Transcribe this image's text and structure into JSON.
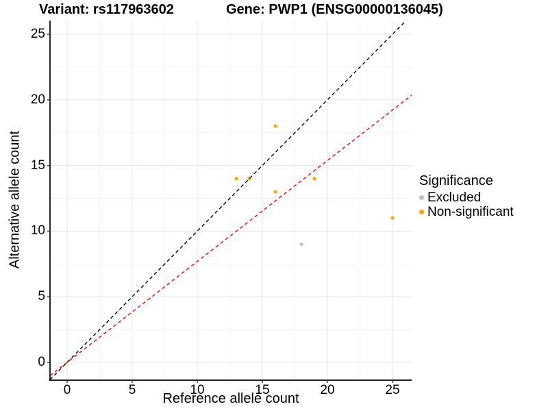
{
  "titles": {
    "variant": "Variant: rs117963602",
    "gene": "Gene: PWP1 (ENSG00000136045)"
  },
  "chart_data": {
    "type": "scatter",
    "xlabel": "Reference allele count",
    "ylabel": "Alternative allele count",
    "x_ticks": [
      0,
      5,
      10,
      15,
      20,
      25
    ],
    "y_ticks": [
      0,
      5,
      10,
      15,
      20,
      25
    ],
    "x_minor_ticks": [
      2.5,
      7.5,
      12.5,
      17.5,
      22.5
    ],
    "y_minor_ticks": [
      2.5,
      7.5,
      12.5,
      17.5,
      22.5
    ],
    "xlim": [
      -1.3,
      26.5
    ],
    "ylim": [
      -1.35,
      26.0
    ],
    "grid": true,
    "series": [
      {
        "name": "Excluded",
        "color": "#BEBEBE",
        "points": [
          [
            18,
            9
          ]
        ]
      },
      {
        "name": "Non-significant",
        "color": "#FFA500",
        "points": [
          [
            13,
            14
          ],
          [
            14,
            14
          ],
          [
            16,
            18
          ],
          [
            16,
            13
          ],
          [
            19,
            14
          ],
          [
            25,
            11
          ]
        ]
      }
    ],
    "reference_lines": [
      {
        "name": "identity-line",
        "slope": 1.0,
        "intercept": 0,
        "color": "#000000",
        "style": "dashed"
      },
      {
        "name": "allelic-ratio-line",
        "slope": 0.769,
        "intercept": 0,
        "color": "#FF0000",
        "style": "dashed"
      }
    ],
    "legend": {
      "title": "Significance",
      "position": "right",
      "items": [
        {
          "label": "Excluded",
          "color": "#BEBEBE"
        },
        {
          "label": "Non-significant",
          "color": "#FFA500"
        }
      ]
    },
    "colors": {
      "major_grid": "#E6E6E6",
      "minor_grid": "#F2F2F2",
      "axis_line": "#000000",
      "text": "#000000"
    }
  }
}
